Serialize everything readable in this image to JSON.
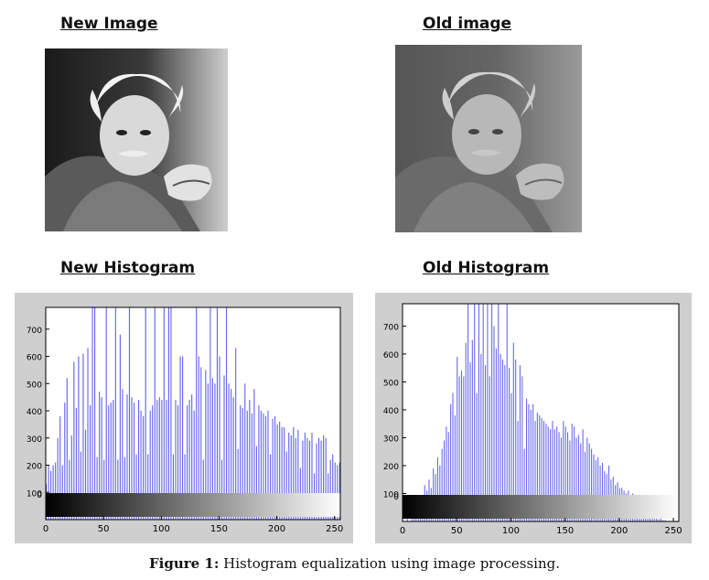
{
  "headings": {
    "new_image": "New Image",
    "old_image": "Old image",
    "new_histogram": "New Histogram",
    "old_histogram": "Old Histogram"
  },
  "caption": {
    "label": "Figure 1:",
    "text": "Histogram equalization using image processing."
  },
  "colors": {
    "bar": "#6666ee",
    "panel_bg": "#cfcfcf",
    "plot_bg": "#ffffff"
  },
  "chart_data": [
    {
      "type": "bar",
      "xlim": [
        0,
        255
      ],
      "ylim": [
        0,
        780
      ],
      "x_ticks": [
        0,
        50,
        100,
        150,
        200,
        250
      ],
      "y_ticks": [
        0,
        100,
        200,
        300,
        400,
        500,
        600,
        700
      ],
      "bars": [
        [
          0,
          130
        ],
        [
          2,
          200
        ],
        [
          4,
          180
        ],
        [
          6,
          200
        ],
        [
          8,
          210
        ],
        [
          10,
          300
        ],
        [
          12,
          380
        ],
        [
          14,
          200
        ],
        [
          16,
          430
        ],
        [
          18,
          520
        ],
        [
          20,
          220
        ],
        [
          22,
          310
        ],
        [
          24,
          580
        ],
        [
          26,
          410
        ],
        [
          28,
          600
        ],
        [
          30,
          250
        ],
        [
          32,
          610
        ],
        [
          34,
          330
        ],
        [
          36,
          630
        ],
        [
          38,
          420
        ],
        [
          40,
          780
        ],
        [
          42,
          780
        ],
        [
          44,
          230
        ],
        [
          46,
          470
        ],
        [
          48,
          450
        ],
        [
          50,
          220
        ],
        [
          52,
          780
        ],
        [
          54,
          420
        ],
        [
          56,
          430
        ],
        [
          58,
          440
        ],
        [
          60,
          780
        ],
        [
          62,
          220
        ],
        [
          64,
          680
        ],
        [
          66,
          480
        ],
        [
          68,
          230
        ],
        [
          70,
          460
        ],
        [
          72,
          780
        ],
        [
          74,
          450
        ],
        [
          76,
          430
        ],
        [
          78,
          240
        ],
        [
          80,
          440
        ],
        [
          82,
          400
        ],
        [
          84,
          380
        ],
        [
          86,
          780
        ],
        [
          88,
          240
        ],
        [
          90,
          400
        ],
        [
          92,
          420
        ],
        [
          94,
          780
        ],
        [
          96,
          440
        ],
        [
          98,
          450
        ],
        [
          100,
          440
        ],
        [
          102,
          780
        ],
        [
          104,
          440
        ],
        [
          106,
          780
        ],
        [
          108,
          780
        ],
        [
          110,
          240
        ],
        [
          112,
          440
        ],
        [
          114,
          420
        ],
        [
          116,
          600
        ],
        [
          118,
          600
        ],
        [
          120,
          240
        ],
        [
          122,
          420
        ],
        [
          124,
          440
        ],
        [
          126,
          460
        ],
        [
          128,
          400
        ],
        [
          130,
          780
        ],
        [
          132,
          600
        ],
        [
          134,
          560
        ],
        [
          136,
          220
        ],
        [
          138,
          550
        ],
        [
          140,
          500
        ],
        [
          142,
          780
        ],
        [
          144,
          520
        ],
        [
          146,
          500
        ],
        [
          148,
          780
        ],
        [
          150,
          600
        ],
        [
          152,
          220
        ],
        [
          154,
          530
        ],
        [
          156,
          780
        ],
        [
          158,
          500
        ],
        [
          160,
          480
        ],
        [
          162,
          450
        ],
        [
          164,
          630
        ],
        [
          166,
          260
        ],
        [
          168,
          420
        ],
        [
          170,
          410
        ],
        [
          172,
          500
        ],
        [
          174,
          400
        ],
        [
          176,
          440
        ],
        [
          178,
          390
        ],
        [
          180,
          480
        ],
        [
          182,
          270
        ],
        [
          184,
          420
        ],
        [
          186,
          400
        ],
        [
          188,
          390
        ],
        [
          190,
          380
        ],
        [
          192,
          400
        ],
        [
          194,
          240
        ],
        [
          196,
          370
        ],
        [
          198,
          380
        ],
        [
          200,
          350
        ],
        [
          202,
          360
        ],
        [
          204,
          340
        ],
        [
          206,
          340
        ],
        [
          208,
          250
        ],
        [
          210,
          320
        ],
        [
          212,
          310
        ],
        [
          214,
          340
        ],
        [
          216,
          300
        ],
        [
          218,
          330
        ],
        [
          220,
          190
        ],
        [
          222,
          290
        ],
        [
          224,
          320
        ],
        [
          226,
          300
        ],
        [
          228,
          290
        ],
        [
          230,
          320
        ],
        [
          232,
          170
        ],
        [
          234,
          280
        ],
        [
          236,
          300
        ],
        [
          238,
          290
        ],
        [
          240,
          310
        ],
        [
          242,
          300
        ],
        [
          244,
          170
        ],
        [
          246,
          220
        ],
        [
          248,
          240
        ],
        [
          250,
          210
        ],
        [
          252,
          200
        ],
        [
          254,
          210
        ]
      ]
    },
    {
      "type": "bar",
      "xlim": [
        0,
        255
      ],
      "ylim": [
        0,
        780
      ],
      "x_ticks": [
        0,
        50,
        100,
        150,
        200,
        250
      ],
      "y_ticks": [
        0,
        100,
        200,
        300,
        400,
        500,
        600,
        700
      ],
      "bars": [
        [
          4,
          20
        ],
        [
          8,
          40
        ],
        [
          10,
          30
        ],
        [
          12,
          60
        ],
        [
          14,
          50
        ],
        [
          16,
          90
        ],
        [
          18,
          70
        ],
        [
          20,
          130
        ],
        [
          22,
          110
        ],
        [
          24,
          150
        ],
        [
          26,
          120
        ],
        [
          28,
          190
        ],
        [
          30,
          170
        ],
        [
          32,
          230
        ],
        [
          34,
          200
        ],
        [
          36,
          260
        ],
        [
          38,
          290
        ],
        [
          40,
          340
        ],
        [
          42,
          320
        ],
        [
          44,
          420
        ],
        [
          46,
          460
        ],
        [
          48,
          380
        ],
        [
          50,
          590
        ],
        [
          52,
          520
        ],
        [
          54,
          540
        ],
        [
          56,
          520
        ],
        [
          58,
          640
        ],
        [
          60,
          780
        ],
        [
          62,
          570
        ],
        [
          64,
          650
        ],
        [
          66,
          780
        ],
        [
          68,
          460
        ],
        [
          70,
          780
        ],
        [
          72,
          600
        ],
        [
          74,
          780
        ],
        [
          76,
          560
        ],
        [
          78,
          780
        ],
        [
          80,
          520
        ],
        [
          82,
          780
        ],
        [
          84,
          700
        ],
        [
          86,
          620
        ],
        [
          88,
          780
        ],
        [
          90,
          600
        ],
        [
          92,
          580
        ],
        [
          94,
          560
        ],
        [
          96,
          780
        ],
        [
          98,
          550
        ],
        [
          100,
          460
        ],
        [
          102,
          640
        ],
        [
          104,
          580
        ],
        [
          106,
          360
        ],
        [
          108,
          560
        ],
        [
          110,
          520
        ],
        [
          112,
          260
        ],
        [
          114,
          440
        ],
        [
          116,
          420
        ],
        [
          118,
          400
        ],
        [
          120,
          420
        ],
        [
          122,
          360
        ],
        [
          124,
          390
        ],
        [
          126,
          380
        ],
        [
          128,
          370
        ],
        [
          130,
          360
        ],
        [
          132,
          350
        ],
        [
          134,
          340
        ],
        [
          136,
          330
        ],
        [
          138,
          360
        ],
        [
          140,
          330
        ],
        [
          142,
          340
        ],
        [
          144,
          320
        ],
        [
          146,
          300
        ],
        [
          148,
          360
        ],
        [
          150,
          340
        ],
        [
          152,
          320
        ],
        [
          154,
          290
        ],
        [
          156,
          350
        ],
        [
          158,
          340
        ],
        [
          160,
          300
        ],
        [
          162,
          310
        ],
        [
          164,
          280
        ],
        [
          166,
          330
        ],
        [
          168,
          250
        ],
        [
          170,
          300
        ],
        [
          172,
          280
        ],
        [
          174,
          260
        ],
        [
          176,
          240
        ],
        [
          178,
          220
        ],
        [
          180,
          230
        ],
        [
          182,
          200
        ],
        [
          184,
          210
        ],
        [
          186,
          180
        ],
        [
          188,
          170
        ],
        [
          190,
          200
        ],
        [
          192,
          150
        ],
        [
          194,
          160
        ],
        [
          196,
          130
        ],
        [
          198,
          140
        ],
        [
          200,
          120
        ],
        [
          202,
          120
        ],
        [
          204,
          110
        ],
        [
          206,
          100
        ],
        [
          208,
          110
        ],
        [
          210,
          90
        ],
        [
          212,
          100
        ],
        [
          214,
          70
        ],
        [
          216,
          80
        ],
        [
          218,
          60
        ],
        [
          220,
          70
        ],
        [
          222,
          50
        ],
        [
          224,
          40
        ],
        [
          226,
          40
        ],
        [
          228,
          30
        ],
        [
          230,
          20
        ],
        [
          232,
          20
        ],
        [
          234,
          10
        ],
        [
          236,
          8
        ],
        [
          238,
          10
        ],
        [
          240,
          5
        ],
        [
          242,
          4
        ]
      ]
    }
  ]
}
